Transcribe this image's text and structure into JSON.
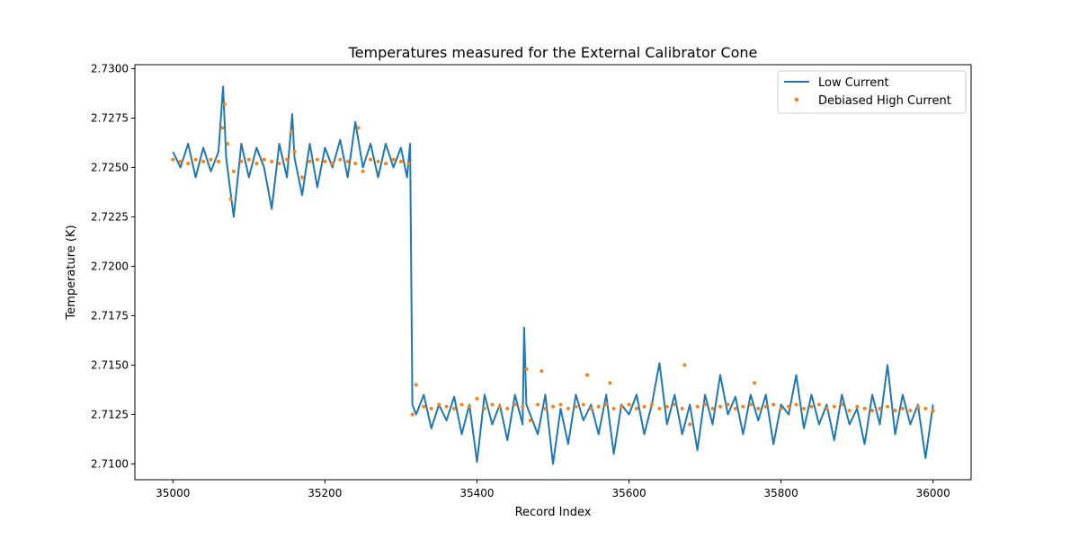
{
  "chart_data": {
    "type": "line",
    "title": "Temperatures measured for the External Calibrator Cone",
    "xlabel": "Record Index",
    "ylabel": "Temperature (K)",
    "xlim": [
      34950,
      36050
    ],
    "ylim": [
      2.7092,
      2.7302
    ],
    "xticks": [
      35000,
      35200,
      35400,
      35600,
      35800,
      36000
    ],
    "xtick_labels": [
      "35000",
      "35200",
      "35400",
      "35600",
      "35800",
      "36000"
    ],
    "yticks": [
      2.71,
      2.7125,
      2.715,
      2.7175,
      2.72,
      2.7225,
      2.725,
      2.7275,
      2.73
    ],
    "ytick_labels": [
      "2.7100",
      "2.7125",
      "2.7150",
      "2.7175",
      "2.7200",
      "2.7225",
      "2.7250",
      "2.7275",
      "2.7300"
    ],
    "legend_position": "top-right",
    "grid": false,
    "series": [
      {
        "name": "Low Current",
        "kind": "line",
        "color": "#1f77b4",
        "x": [
          35000,
          35010,
          35020,
          35030,
          35040,
          35050,
          35060,
          35066,
          35070,
          35075,
          35080,
          35090,
          35100,
          35110,
          35120,
          35130,
          35140,
          35150,
          35157,
          35160,
          35170,
          35180,
          35190,
          35200,
          35210,
          35220,
          35230,
          35240,
          35250,
          35260,
          35270,
          35280,
          35290,
          35300,
          35308,
          35312,
          35315,
          35320,
          35330,
          35340,
          35350,
          35360,
          35370,
          35380,
          35390,
          35400,
          35410,
          35420,
          35430,
          35440,
          35450,
          35460,
          35462,
          35465,
          35470,
          35480,
          35490,
          35500,
          35510,
          35520,
          35530,
          35540,
          35550,
          35560,
          35570,
          35580,
          35590,
          35600,
          35610,
          35620,
          35630,
          35640,
          35650,
          35660,
          35670,
          35680,
          35690,
          35700,
          35710,
          35720,
          35730,
          35740,
          35750,
          35760,
          35770,
          35780,
          35790,
          35800,
          35810,
          35820,
          35830,
          35840,
          35850,
          35860,
          35870,
          35880,
          35890,
          35900,
          35910,
          35920,
          35930,
          35940,
          35950,
          35960,
          35970,
          35980,
          35990,
          36000
        ],
        "values": [
          2.7258,
          2.725,
          2.7262,
          2.7245,
          2.726,
          2.7248,
          2.7258,
          2.7291,
          2.7255,
          2.724,
          2.7225,
          2.7262,
          2.7245,
          2.726,
          2.725,
          2.7229,
          2.7262,
          2.7245,
          2.7277,
          2.7255,
          2.7236,
          2.7262,
          2.724,
          2.726,
          2.725,
          2.7264,
          2.7245,
          2.7273,
          2.725,
          2.7262,
          2.7245,
          2.7262,
          2.725,
          2.726,
          2.7245,
          2.7262,
          2.713,
          2.7125,
          2.7135,
          2.7118,
          2.713,
          2.7122,
          2.7134,
          2.7115,
          2.713,
          2.7101,
          2.7135,
          2.712,
          2.713,
          2.7112,
          2.7135,
          2.712,
          2.7169,
          2.713,
          2.7125,
          2.7115,
          2.7135,
          2.71,
          2.7128,
          2.711,
          2.7135,
          2.7122,
          2.713,
          2.7115,
          2.7135,
          2.7105,
          2.713,
          2.7125,
          2.7135,
          2.7115,
          2.713,
          2.7151,
          2.712,
          2.7135,
          2.7115,
          2.713,
          2.7107,
          2.7135,
          2.712,
          2.7145,
          2.7125,
          2.7134,
          2.7115,
          2.7135,
          2.7122,
          2.7135,
          2.711,
          2.713,
          2.7125,
          2.7145,
          2.7118,
          2.7135,
          2.712,
          2.713,
          2.7112,
          2.7135,
          2.712,
          2.7128,
          2.711,
          2.7135,
          2.712,
          2.715,
          2.7115,
          2.7135,
          2.712,
          2.713,
          2.7103,
          2.713
        ]
      },
      {
        "name": "Debiased High Current",
        "kind": "scatter",
        "color": "#ff7f0e",
        "x": [
          35000,
          35010,
          35020,
          35030,
          35040,
          35050,
          35060,
          35065,
          35068,
          35072,
          35076,
          35080,
          35090,
          35100,
          35110,
          35120,
          35130,
          35140,
          35150,
          35156,
          35160,
          35170,
          35180,
          35190,
          35200,
          35210,
          35220,
          35230,
          35240,
          35244,
          35250,
          35260,
          35270,
          35280,
          35290,
          35300,
          35310,
          35315,
          35320,
          35330,
          35340,
          35350,
          35360,
          35370,
          35380,
          35390,
          35400,
          35410,
          35420,
          35430,
          35440,
          35450,
          35460,
          35465,
          35470,
          35480,
          35485,
          35490,
          35500,
          35510,
          35520,
          35530,
          35540,
          35545,
          35550,
          35560,
          35570,
          35575,
          35580,
          35590,
          35600,
          35610,
          35620,
          35630,
          35640,
          35650,
          35660,
          35670,
          35673,
          35680,
          35690,
          35700,
          35710,
          35720,
          35730,
          35740,
          35750,
          35760,
          35765,
          35770,
          35780,
          35790,
          35800,
          35810,
          35820,
          35830,
          35840,
          35850,
          35860,
          35870,
          35880,
          35890,
          35900,
          35910,
          35920,
          35930,
          35940,
          35950,
          35960,
          35970,
          35980,
          35990,
          36000
        ],
        "values": [
          2.7254,
          2.7253,
          2.7252,
          2.7254,
          2.7253,
          2.7254,
          2.7253,
          2.727,
          2.7282,
          2.7262,
          2.7234,
          2.7248,
          2.7253,
          2.7254,
          2.7252,
          2.7254,
          2.7253,
          2.7252,
          2.7254,
          2.7268,
          2.7258,
          2.7245,
          2.7253,
          2.7254,
          2.7253,
          2.7252,
          2.7254,
          2.7253,
          2.7252,
          2.727,
          2.7248,
          2.7254,
          2.7253,
          2.7252,
          2.7254,
          2.7253,
          2.7252,
          2.7125,
          2.714,
          2.7129,
          2.7128,
          2.713,
          2.7129,
          2.7128,
          2.713,
          2.7129,
          2.7133,
          2.7128,
          2.713,
          2.7129,
          2.7128,
          2.713,
          2.7129,
          2.7148,
          2.7122,
          2.713,
          2.7147,
          2.7128,
          2.7129,
          2.713,
          2.7128,
          2.7129,
          2.713,
          2.7145,
          2.7128,
          2.7129,
          2.713,
          2.7141,
          2.7128,
          2.7129,
          2.713,
          2.7128,
          2.7129,
          2.713,
          2.7128,
          2.7129,
          2.713,
          2.7128,
          2.715,
          2.712,
          2.7129,
          2.713,
          2.7128,
          2.7129,
          2.713,
          2.7128,
          2.7129,
          2.713,
          2.7141,
          2.7128,
          2.7129,
          2.713,
          2.7128,
          2.7129,
          2.713,
          2.7128,
          2.7129,
          2.713,
          2.7128,
          2.7129,
          2.713,
          2.7127,
          2.7129,
          2.7128,
          2.7127,
          2.7128,
          2.7129,
          2.7127,
          2.7128,
          2.7127,
          2.7129,
          2.7128,
          2.7127
        ]
      }
    ]
  },
  "legend": {
    "low_current": "Low Current",
    "high_current": "Debiased High Current"
  }
}
